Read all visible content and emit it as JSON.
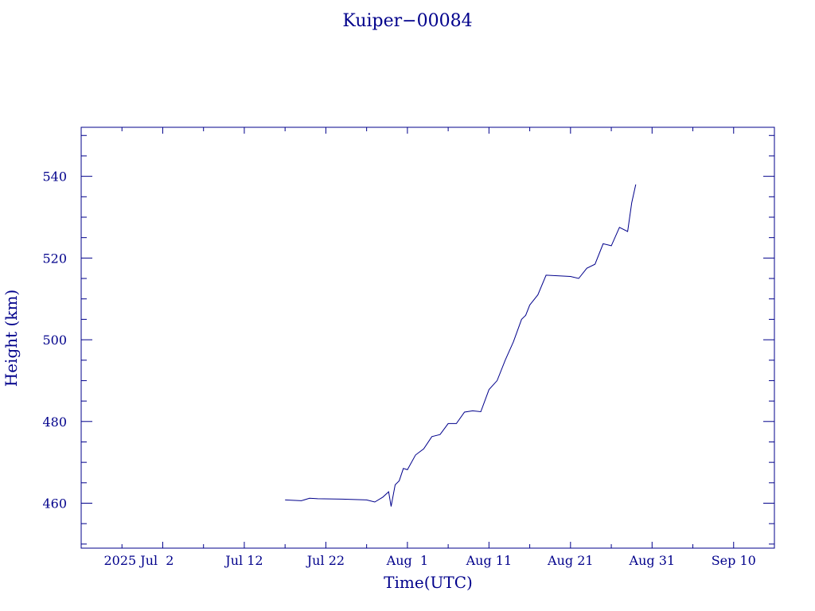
{
  "chart_data": {
    "type": "line",
    "title": "Kuiper−00084",
    "xlabel": "Time(UTC)",
    "ylabel": "Height (km)",
    "xlim": [
      "2025-06-22",
      "2025-09-15"
    ],
    "ylim": [
      449,
      552
    ],
    "grid": false,
    "x_ticks": [
      "2025 Jul  2",
      "Jul 12",
      "Jul 22",
      "Aug  1",
      "Aug 11",
      "Aug 21",
      "Aug 31",
      "Sep 10"
    ],
    "y_ticks": [
      "460",
      "480",
      "500",
      "520",
      "540"
    ],
    "series": [
      {
        "color": "#00008b",
        "x": [
          "2025-07-17",
          "2025-07-19",
          "2025-07-20",
          "2025-07-21",
          "2025-07-24",
          "2025-07-27",
          "2025-07-28",
          "2025-07-29",
          "2025-07-29.7",
          "2025-07-30",
          "2025-07-30.5",
          "2025-07-31",
          "2025-07-31.5",
          "2025-08-01",
          "2025-08-02",
          "2025-08-03",
          "2025-08-04",
          "2025-08-05",
          "2025-08-06",
          "2025-08-07",
          "2025-08-08",
          "2025-08-09",
          "2025-08-10",
          "2025-08-11",
          "2025-08-12",
          "2025-08-13",
          "2025-08-14",
          "2025-08-15",
          "2025-08-15.5",
          "2025-08-16",
          "2025-08-17",
          "2025-08-18",
          "2025-08-21",
          "2025-08-22",
          "2025-08-23",
          "2025-08-24",
          "2025-08-25",
          "2025-08-26",
          "2025-08-27",
          "2025-08-28",
          "2025-08-28.5",
          "2025-08-29"
        ],
        "y": [
          460.8,
          460.6,
          461.2,
          461.1,
          461.0,
          460.8,
          460.3,
          461.5,
          462.8,
          459.2,
          464.5,
          465.5,
          468.5,
          468.2,
          471.8,
          473.3,
          476.3,
          476.8,
          479.5,
          479.5,
          482.3,
          482.6,
          482.4,
          487.8,
          490.0,
          495.0,
          499.5,
          505.0,
          506.0,
          508.5,
          511.0,
          515.8,
          515.5,
          515.0,
          517.5,
          518.5,
          523.5,
          523.0,
          527.5,
          526.5,
          533.5,
          538.0
        ]
      }
    ]
  }
}
